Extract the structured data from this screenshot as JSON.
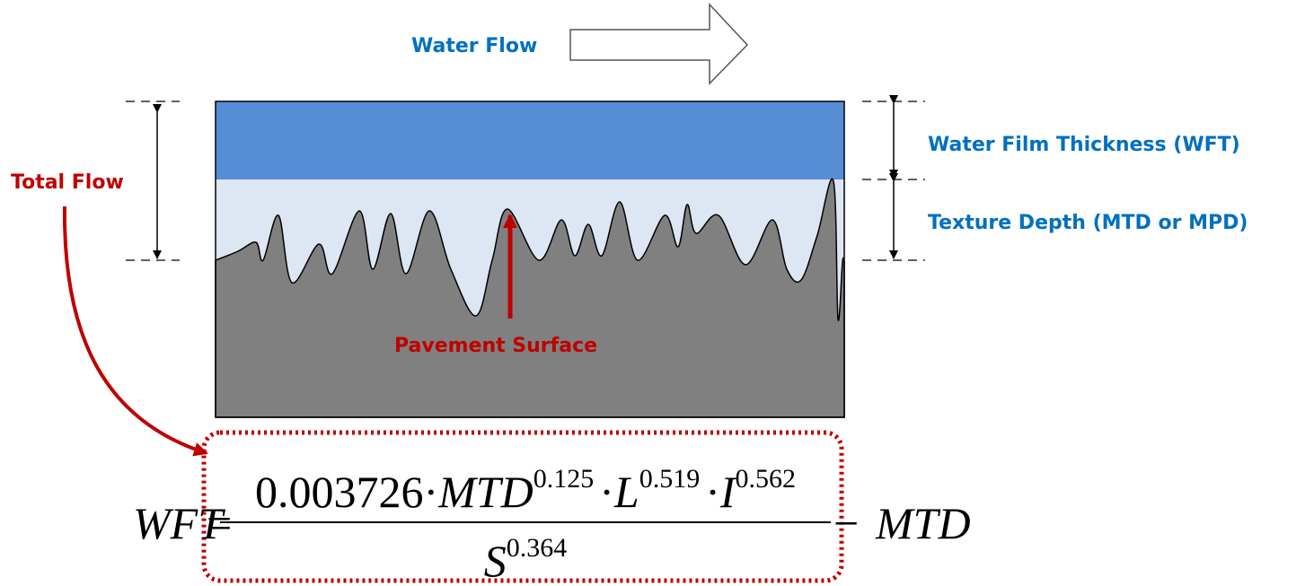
{
  "labels": {
    "water_flow": "Water Flow",
    "wft": "Water Film Thickness (WFT)",
    "texture_depth": "Texture Depth (MTD or MPD)",
    "total_flow": "Total Flow",
    "pavement_surface": "Pavement Surface"
  },
  "formula": {
    "lhs": "WFT",
    "equals": "=",
    "numerator": [
      "0.003726",
      "·",
      "MTD",
      "0.125",
      "·",
      "L",
      "0.519",
      "·",
      "I",
      "0.562"
    ],
    "denominator": [
      "S",
      "0.364"
    ],
    "minus": "−",
    "rhs": "MTD"
  }
}
